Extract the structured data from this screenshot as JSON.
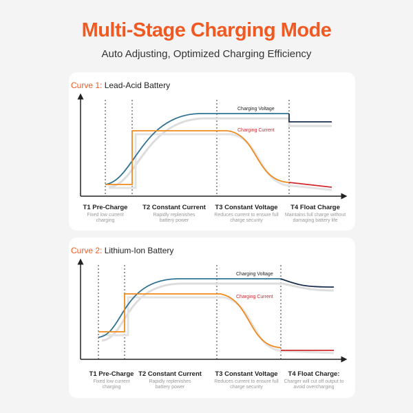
{
  "title": "Multi-Stage Charging Mode",
  "subtitle": "Auto Adjusting, Optimized Charging Efficiency",
  "curves": [
    {
      "prefix": "Curve 1:",
      "name": "Lead-Acid Battery",
      "voltage_label": "Charging Voltage",
      "current_label": "Charging Current",
      "stages": [
        {
          "title": "T1 Pre-Charge",
          "desc": "Fixed low current charging"
        },
        {
          "title": "T2 Constant Current",
          "desc": "Rapidly replenishes battery power"
        },
        {
          "title": "T3 Constant Voltage",
          "desc": "Reduces current to ensure full charge security"
        },
        {
          "title": "T4 Float Charge",
          "desc": "Maintains full charge without damaging battery life"
        }
      ]
    },
    {
      "prefix": "Curve 2:",
      "name": "Lithium-Ion Battery",
      "voltage_label": "Charging Voltage",
      "current_label": "Charging Current",
      "stages": [
        {
          "title": "T1 Pre-Charge",
          "desc": "Fixed low current charging"
        },
        {
          "title": "T2 Constant Current",
          "desc": "Rapidly replenishes battery power"
        },
        {
          "title": "T3 Constant Voltage",
          "desc": "Reduces current to ensure full charge security"
        },
        {
          "title": "T4 Float Charge:",
          "desc": "Charger will cut off output to avoid overcharging"
        }
      ]
    }
  ],
  "colors": {
    "accent": "#f05a22",
    "voltage": "#2f7394",
    "voltage_float": "#1d2f4f",
    "current": "#f08a1e",
    "current_float": "#d0282e"
  }
}
